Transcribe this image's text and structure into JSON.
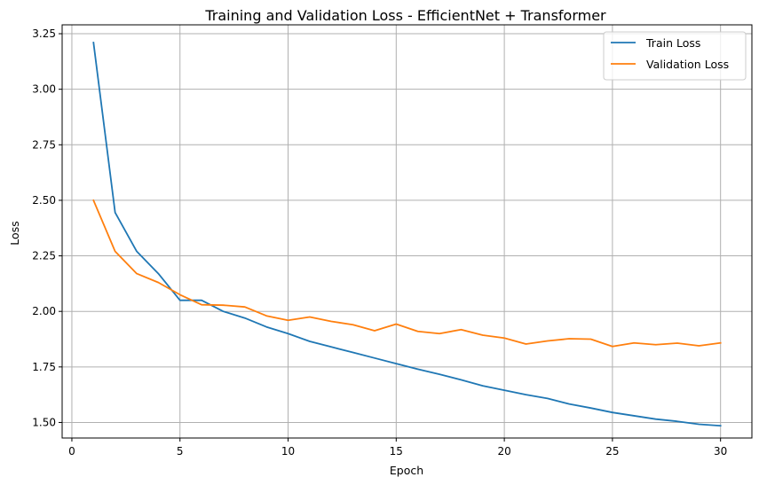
{
  "chart_data": {
    "type": "line",
    "title": "Training and Validation Loss - EfficientNet + Transformer",
    "xlabel": "Epoch",
    "ylabel": "Loss",
    "xlim": [
      -0.45,
      31.45
    ],
    "ylim": [
      1.43,
      3.29
    ],
    "xticks": [
      0,
      5,
      10,
      15,
      20,
      25,
      30
    ],
    "xtick_labels": [
      "0",
      "5",
      "10",
      "15",
      "20",
      "25",
      "30"
    ],
    "yticks": [
      1.5,
      1.75,
      2.0,
      2.25,
      2.5,
      2.75,
      3.0,
      3.25
    ],
    "ytick_labels": [
      "1.50",
      "1.75",
      "2.00",
      "2.25",
      "2.50",
      "2.75",
      "3.00",
      "3.25"
    ],
    "grid": true,
    "legend_position": "top-right",
    "x": [
      1,
      2,
      3,
      4,
      5,
      6,
      7,
      8,
      9,
      10,
      11,
      12,
      13,
      14,
      15,
      16,
      17,
      18,
      19,
      20,
      21,
      22,
      23,
      24,
      25,
      26,
      27,
      28,
      29,
      30
    ],
    "series": [
      {
        "name": "Train Loss",
        "color": "#1f77b4",
        "values": [
          3.21,
          2.445,
          2.27,
          2.17,
          2.05,
          2.05,
          2.0,
          1.97,
          1.93,
          1.9,
          1.865,
          1.84,
          1.815,
          1.79,
          1.765,
          1.74,
          1.717,
          1.692,
          1.665,
          1.645,
          1.625,
          1.608,
          1.583,
          1.565,
          1.545,
          1.53,
          1.515,
          1.505,
          1.492,
          1.485
        ]
      },
      {
        "name": "Validation Loss",
        "color": "#ff7f0e",
        "values": [
          2.5,
          2.27,
          2.17,
          2.13,
          2.075,
          2.03,
          2.028,
          2.02,
          1.98,
          1.96,
          1.975,
          1.955,
          1.94,
          1.913,
          1.943,
          1.91,
          1.9,
          1.918,
          1.893,
          1.88,
          1.853,
          1.867,
          1.877,
          1.875,
          1.842,
          1.858,
          1.85,
          1.857,
          1.845,
          1.858
        ]
      }
    ]
  }
}
